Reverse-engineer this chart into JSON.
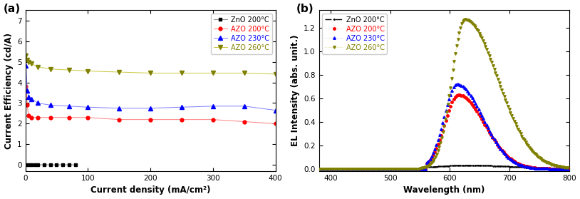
{
  "panel_a": {
    "title": "(a)",
    "xlabel": "Current density (mA/cm²)",
    "ylabel": "Current Efficiency (cd/A)",
    "xlim": [
      0,
      400
    ],
    "ylim": [
      -0.3,
      7.5
    ],
    "yticks": [
      0,
      1,
      2,
      3,
      4,
      5,
      6,
      7
    ],
    "xticks": [
      0,
      100,
      200,
      300,
      400
    ],
    "series": {
      "ZnO_200": {
        "x": [
          1,
          5,
          10,
          15,
          20,
          30,
          40,
          50,
          60,
          70,
          80
        ],
        "y": [
          0.02,
          0.02,
          0.02,
          0.01,
          0.01,
          0.01,
          0.01,
          0.01,
          0.01,
          0.01,
          0.01
        ],
        "color": "#000000",
        "line_color": "#888888",
        "marker": "s",
        "linestyle": "-",
        "label": "ZnO 200°C",
        "markersize": 3.5
      },
      "AZO_200": {
        "x": [
          1,
          3,
          5,
          10,
          20,
          40,
          70,
          100,
          150,
          200,
          250,
          300,
          350,
          400
        ],
        "y": [
          3.8,
          2.9,
          2.4,
          2.3,
          2.3,
          2.3,
          2.3,
          2.3,
          2.2,
          2.2,
          2.2,
          2.2,
          2.1,
          2.0
        ],
        "color": "#ff0000",
        "line_color": "#ff8080",
        "marker": "o",
        "linestyle": "-",
        "label": "AZO 200°C",
        "markersize": 3.5
      },
      "AZO_230": {
        "x": [
          1,
          3,
          5,
          10,
          20,
          40,
          70,
          100,
          150,
          200,
          250,
          300,
          350,
          400
        ],
        "y": [
          4.8,
          3.6,
          3.3,
          3.2,
          3.0,
          2.9,
          2.85,
          2.8,
          2.75,
          2.75,
          2.8,
          2.85,
          2.85,
          2.65
        ],
        "color": "#0000ff",
        "line_color": "#8080ff",
        "marker": "^",
        "linestyle": "-",
        "label": "AZO 230°C",
        "markersize": 4
      },
      "AZO_260": {
        "x": [
          1,
          3,
          5,
          10,
          20,
          40,
          70,
          100,
          150,
          200,
          250,
          300,
          350,
          400
        ],
        "y": [
          5.3,
          5.1,
          5.0,
          4.9,
          4.75,
          4.65,
          4.6,
          4.55,
          4.5,
          4.45,
          4.45,
          4.45,
          4.45,
          4.4
        ],
        "color": "#808000",
        "line_color": "#c8c840",
        "marker": "v",
        "linestyle": "-",
        "label": "AZO 260°C",
        "markersize": 4
      }
    }
  },
  "panel_b": {
    "title": "(b)",
    "xlabel": "Wavelength (nm)",
    "ylabel": "EL Intensity (abs. unit.)",
    "xlim": [
      380,
      800
    ],
    "ylim": [
      -0.02,
      1.35
    ],
    "yticks": [
      0.0,
      0.2,
      0.4,
      0.6,
      0.8,
      1.0,
      1.2
    ],
    "xticks": [
      400,
      500,
      600,
      700,
      800
    ],
    "spectra": {
      "ZnO_200": {
        "peak": 630,
        "peak_val": 0.03,
        "wl": 55,
        "wr": 75,
        "color": "#000000",
        "line_color": "#000000",
        "marker": ".",
        "ms": 1.5,
        "label": "ZnO 200°C",
        "ls": "-.",
        "lw": 1.0,
        "every": 4,
        "onset": 560
      },
      "AZO_200": {
        "peak": 614,
        "peak_val": 0.63,
        "wl": 23,
        "wr": 44,
        "color": "#ff0000",
        "line_color": "#ffaaaa",
        "marker": "o",
        "ms": 2.5,
        "label": "AZO 200°C",
        "ls": ":",
        "lw": 0.5,
        "every": 5,
        "onset": 560
      },
      "AZO_230": {
        "peak": 612,
        "peak_val": 0.72,
        "wl": 22,
        "wr": 43,
        "color": "#0000ff",
        "line_color": "#aaaaff",
        "marker": "^",
        "ms": 2.5,
        "label": "AZO 230°C",
        "ls": ":",
        "lw": 0.5,
        "every": 5,
        "onset": 560
      },
      "AZO_260": {
        "peak": 625,
        "peak_val": 1.27,
        "wl": 22,
        "wr": 55,
        "color": "#808000",
        "line_color": "#c8c840",
        "marker": "v",
        "ms": 2.5,
        "label": "AZO 260°C",
        "ls": ":",
        "lw": 0.5,
        "every": 4,
        "onset": 550
      }
    }
  },
  "fig_bg": "#ffffff",
  "plot_bg": "#ffffff",
  "legend_fontsize": 7.0,
  "axis_label_fontsize": 8.5,
  "tick_fontsize": 7.5,
  "panel_label_fontsize": 11
}
